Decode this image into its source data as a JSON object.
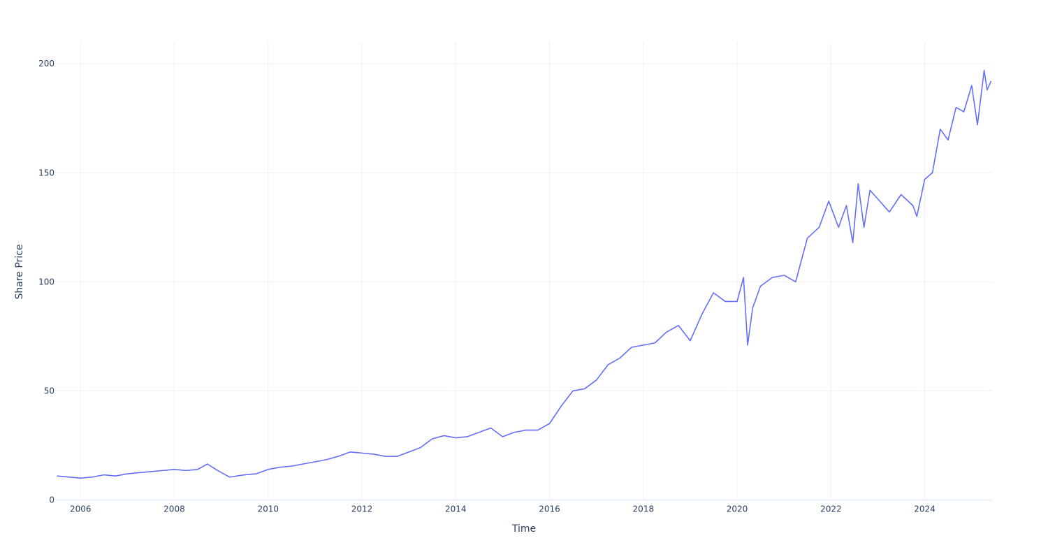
{
  "chart_data": {
    "type": "line",
    "title": "",
    "xlabel": "Time",
    "ylabel": "Share Price",
    "x_tick_labels": [
      "2006",
      "2008",
      "2010",
      "2012",
      "2014",
      "2016",
      "2018",
      "2020",
      "2022",
      "2024"
    ],
    "y_tick_labels": [
      "0",
      "50",
      "100",
      "150",
      "200"
    ],
    "y_ticks": [
      0,
      50,
      100,
      150,
      200
    ],
    "xlim": [
      "2005-06-23",
      "2025-06-09"
    ],
    "ylim": [
      0,
      210
    ],
    "grid": true,
    "line_color": "#636efa",
    "series": [
      {
        "x": [
          "2005-07-01",
          "2005-10-01",
          "2006-01-01",
          "2006-04-01",
          "2006-07-01",
          "2006-10-01",
          "2007-01-01",
          "2007-04-01",
          "2007-07-01",
          "2007-10-01",
          "2008-01-01",
          "2008-04-01",
          "2008-07-01",
          "2008-09-15",
          "2008-11-20",
          "2009-03-05",
          "2009-07-01",
          "2009-10-01",
          "2010-01-01",
          "2010-04-01",
          "2010-07-01",
          "2010-10-01",
          "2011-01-01",
          "2011-04-01",
          "2011-07-01",
          "2011-10-01",
          "2012-01-01",
          "2012-04-01",
          "2012-07-01",
          "2012-10-01",
          "2013-01-01",
          "2013-04-01",
          "2013-07-01",
          "2013-10-01",
          "2014-01-01",
          "2014-04-01",
          "2014-07-01",
          "2014-10-01",
          "2015-01-01",
          "2015-04-01",
          "2015-07-01",
          "2015-10-01",
          "2016-01-01",
          "2016-04-01",
          "2016-07-01",
          "2016-10-01",
          "2017-01-01",
          "2017-04-01",
          "2017-07-01",
          "2017-10-01",
          "2018-01-01",
          "2018-04-01",
          "2018-07-01",
          "2018-10-01",
          "2019-01-01",
          "2019-04-01",
          "2019-07-01",
          "2019-10-01",
          "2020-01-01",
          "2020-02-20",
          "2020-03-23",
          "2020-05-01",
          "2020-07-01",
          "2020-10-01",
          "2021-01-01",
          "2021-04-01",
          "2021-07-01",
          "2021-10-01",
          "2021-12-15",
          "2022-03-01",
          "2022-05-01",
          "2022-06-20",
          "2022-08-01",
          "2022-09-15",
          "2022-11-01",
          "2023-01-01",
          "2023-04-01",
          "2023-07-01",
          "2023-10-01",
          "2023-11-01",
          "2024-01-01",
          "2024-03-01",
          "2024-05-01",
          "2024-07-01",
          "2024-09-01",
          "2024-11-01",
          "2025-01-01",
          "2025-02-15",
          "2025-04-08",
          "2025-05-01",
          "2025-06-01"
        ],
        "y": [
          11,
          10.5,
          10,
          10.5,
          11.5,
          11,
          12,
          12.5,
          13,
          13.5,
          14,
          13.5,
          14,
          16.5,
          14,
          10.5,
          11.5,
          12,
          14,
          15,
          15.5,
          16.5,
          17.5,
          18.5,
          20,
          22,
          21.5,
          21,
          20,
          20,
          22,
          24,
          28,
          29.5,
          28.5,
          29,
          31,
          33,
          29,
          31,
          32,
          32,
          35,
          43,
          50,
          51,
          55,
          62,
          65,
          70,
          71,
          72,
          77,
          80,
          73,
          85,
          95,
          91,
          91,
          102,
          71,
          88,
          98,
          102,
          103,
          100,
          120,
          125,
          137,
          125,
          135,
          118,
          145,
          125,
          142,
          138,
          132,
          140,
          135,
          130,
          147,
          150,
          170,
          165,
          180,
          178,
          190,
          172,
          197,
          188,
          192
        ]
      }
    ]
  }
}
